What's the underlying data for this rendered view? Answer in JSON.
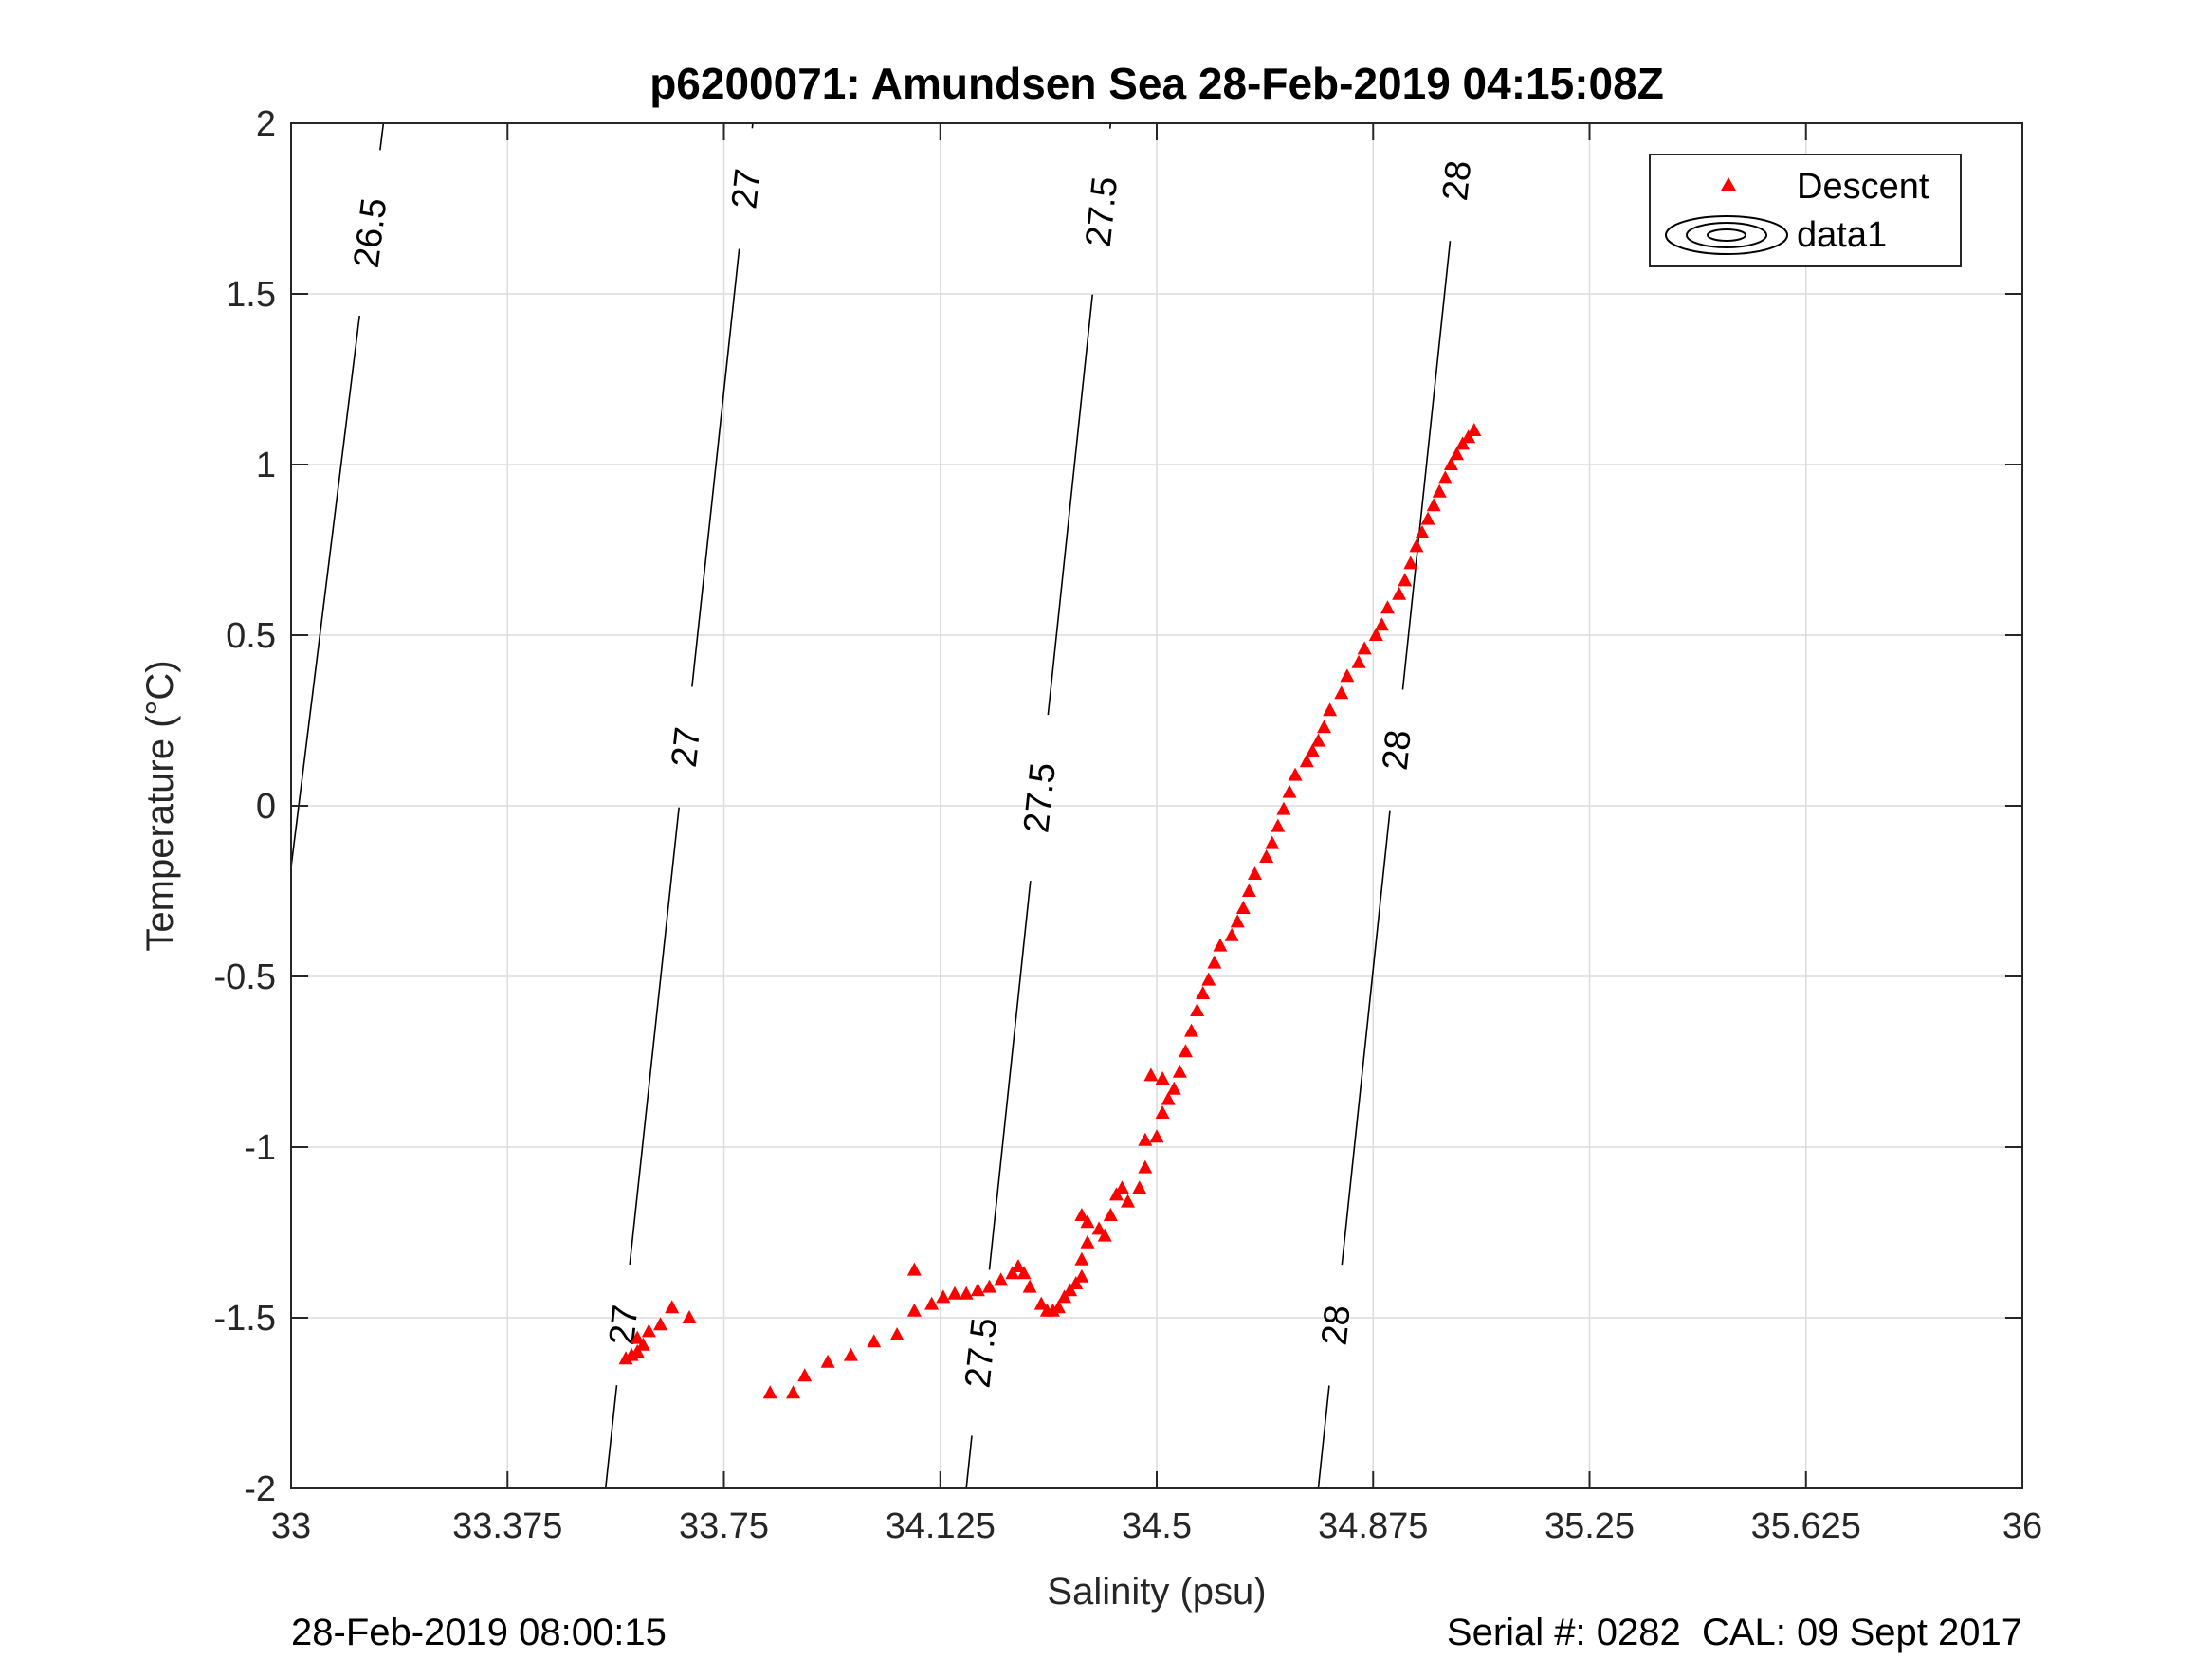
{
  "chart_data": {
    "type": "scatter",
    "title": "p6200071: Amundsen Sea 28-Feb-2019 04:15:08Z",
    "xlabel": "Salinity (psu)",
    "ylabel": "Temperature (°C)",
    "xlim": [
      33,
      36
    ],
    "ylim": [
      -2,
      2
    ],
    "x_ticks": [
      33,
      33.375,
      33.75,
      34.125,
      34.5,
      34.875,
      35.25,
      35.625,
      36
    ],
    "x_tick_labels": [
      "33",
      "33.375",
      "33.75",
      "34.125",
      "34.5",
      "34.875",
      "35.25",
      "35.625",
      "36"
    ],
    "y_ticks": [
      -2,
      -1.5,
      -1,
      -0.5,
      0,
      0.5,
      1,
      1.5,
      2
    ],
    "y_tick_labels": [
      "-2",
      "-1.5",
      "-1",
      "-0.5",
      "0",
      "0.5",
      "1",
      "1.5",
      "2"
    ],
    "grid": true,
    "legend_position": "top-right",
    "legend": [
      "Descent",
      "data1"
    ],
    "series": [
      {
        "name": "Descent",
        "marker": "triangle",
        "color": "#ff0000",
        "points": [
          [
            33.58,
            -1.62
          ],
          [
            33.59,
            -1.61
          ],
          [
            33.6,
            -1.6
          ],
          [
            33.61,
            -1.58
          ],
          [
            33.6,
            -1.56
          ],
          [
            33.62,
            -1.54
          ],
          [
            33.64,
            -1.52
          ],
          [
            33.66,
            -1.47
          ],
          [
            33.69,
            -1.5
          ],
          [
            33.83,
            -1.72
          ],
          [
            33.87,
            -1.72
          ],
          [
            33.89,
            -1.67
          ],
          [
            33.93,
            -1.63
          ],
          [
            33.97,
            -1.61
          ],
          [
            34.01,
            -1.57
          ],
          [
            34.05,
            -1.55
          ],
          [
            34.08,
            -1.48
          ],
          [
            34.08,
            -1.36
          ],
          [
            34.11,
            -1.46
          ],
          [
            34.13,
            -1.44
          ],
          [
            34.15,
            -1.43
          ],
          [
            34.17,
            -1.43
          ],
          [
            34.19,
            -1.42
          ],
          [
            34.21,
            -1.41
          ],
          [
            34.23,
            -1.39
          ],
          [
            34.25,
            -1.37
          ],
          [
            34.26,
            -1.35
          ],
          [
            34.27,
            -1.37
          ],
          [
            34.28,
            -1.41
          ],
          [
            34.3,
            -1.46
          ],
          [
            34.31,
            -1.48
          ],
          [
            34.32,
            -1.48
          ],
          [
            34.33,
            -1.47
          ],
          [
            34.34,
            -1.44
          ],
          [
            34.35,
            -1.42
          ],
          [
            34.36,
            -1.4
          ],
          [
            34.37,
            -1.38
          ],
          [
            34.37,
            -1.33
          ],
          [
            34.38,
            -1.28
          ],
          [
            34.37,
            -1.2
          ],
          [
            34.38,
            -1.22
          ],
          [
            34.4,
            -1.24
          ],
          [
            34.41,
            -1.26
          ],
          [
            34.42,
            -1.2
          ],
          [
            34.43,
            -1.14
          ],
          [
            34.44,
            -1.12
          ],
          [
            34.45,
            -1.16
          ],
          [
            34.47,
            -1.12
          ],
          [
            34.48,
            -1.06
          ],
          [
            34.48,
            -0.98
          ],
          [
            34.5,
            -0.97
          ],
          [
            34.51,
            -0.9
          ],
          [
            34.52,
            -0.86
          ],
          [
            34.53,
            -0.83
          ],
          [
            34.49,
            -0.79
          ],
          [
            34.51,
            -0.8
          ],
          [
            34.54,
            -0.78
          ],
          [
            34.55,
            -0.72
          ],
          [
            34.56,
            -0.66
          ],
          [
            34.57,
            -0.6
          ],
          [
            34.58,
            -0.55
          ],
          [
            34.59,
            -0.51
          ],
          [
            34.6,
            -0.46
          ],
          [
            34.61,
            -0.41
          ],
          [
            34.63,
            -0.38
          ],
          [
            34.64,
            -0.34
          ],
          [
            34.65,
            -0.3
          ],
          [
            34.66,
            -0.25
          ],
          [
            34.67,
            -0.2
          ],
          [
            34.69,
            -0.15
          ],
          [
            34.7,
            -0.11
          ],
          [
            34.71,
            -0.06
          ],
          [
            34.72,
            -0.01
          ],
          [
            34.73,
            0.04
          ],
          [
            34.74,
            0.09
          ],
          [
            34.76,
            0.13
          ],
          [
            34.77,
            0.16
          ],
          [
            34.78,
            0.19
          ],
          [
            34.79,
            0.23
          ],
          [
            34.8,
            0.28
          ],
          [
            34.82,
            0.33
          ],
          [
            34.83,
            0.38
          ],
          [
            34.85,
            0.42
          ],
          [
            34.86,
            0.46
          ],
          [
            34.88,
            0.5
          ],
          [
            34.89,
            0.53
          ],
          [
            34.9,
            0.58
          ],
          [
            34.92,
            0.62
          ],
          [
            34.93,
            0.66
          ],
          [
            34.94,
            0.71
          ],
          [
            34.95,
            0.76
          ],
          [
            34.96,
            0.8
          ],
          [
            34.97,
            0.84
          ],
          [
            34.98,
            0.88
          ],
          [
            34.99,
            0.92
          ],
          [
            35,
            0.96
          ],
          [
            35.01,
            1
          ],
          [
            35.02,
            1.03
          ],
          [
            35.03,
            1.06
          ],
          [
            35.04,
            1.08
          ],
          [
            35.05,
            1.1
          ]
        ]
      },
      {
        "name": "data1",
        "type": "contour",
        "color": "#000000",
        "lines": [
          {
            "level": "26.5",
            "points": [
              [
                33,
                -0.18
              ],
              [
                33.16,
                2
              ]
            ],
            "label_positions": [
              [
                33.13,
                1.68
              ]
            ]
          },
          {
            "level": "27",
            "points": [
              [
                33.545,
                -2
              ],
              [
                33.8,
                2
              ]
            ],
            "label_positions": [
              [
                33.57,
                -1.52
              ],
              [
                33.64,
                0.18
              ],
              [
                33.78,
                1.81
              ]
            ]
          },
          {
            "level": "27.5",
            "points": [
              [
                34.17,
                -2
              ],
              [
                34.42,
                2
              ]
            ],
            "label_positions": [
              [
                34.18,
                -1.6
              ],
              [
                34.26,
                0.03
              ],
              [
                34.41,
                1.74
              ]
            ]
          },
          {
            "level": "28",
            "points": [
              [
                34.78,
                -2
              ],
              [
                35.03,
                2
              ]
            ],
            "label_positions": [
              [
                34.8,
                -1.52
              ],
              [
                34.88,
                0.17
              ],
              [
                35.03,
                1.83
              ]
            ]
          }
        ]
      }
    ]
  },
  "footer": {
    "left": "28-Feb-2019 08:00:15",
    "right": "Serial #: 0282  CAL: 09 Sept 2017"
  }
}
